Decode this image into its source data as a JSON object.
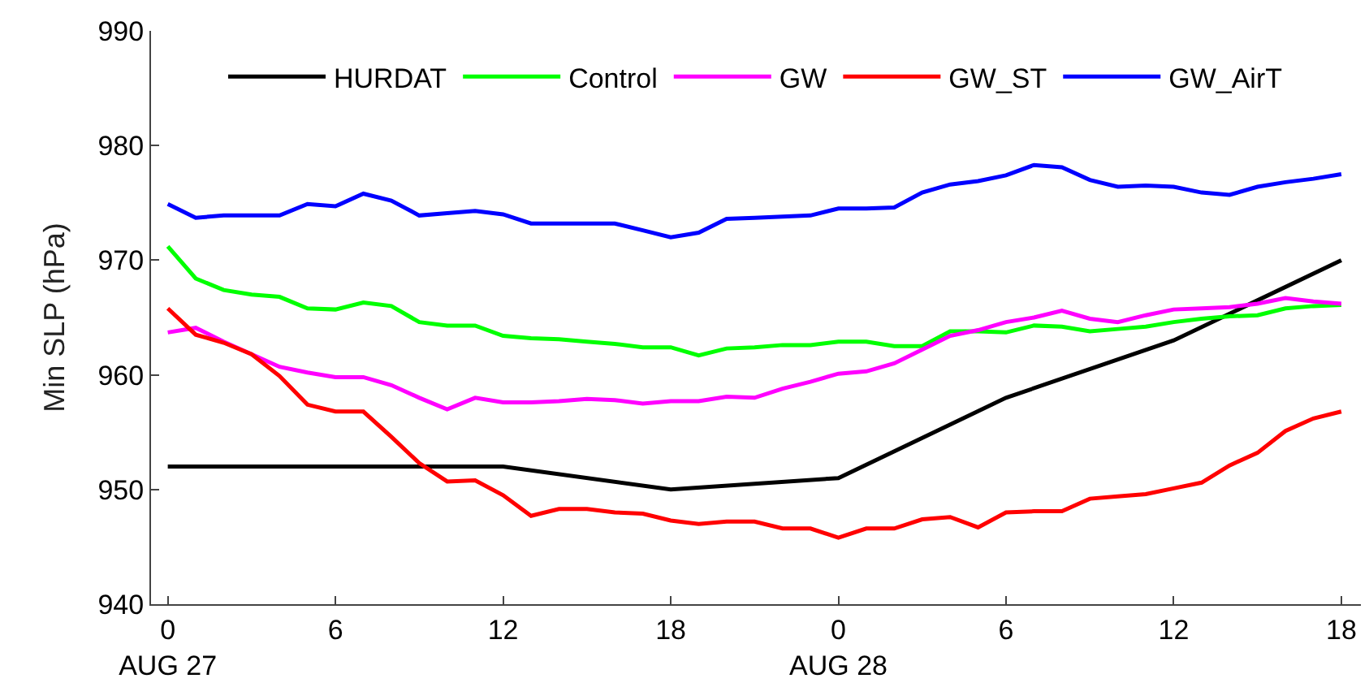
{
  "chart_data": {
    "type": "line",
    "ylabel": "Min SLP (hPa)",
    "x": [
      "--08-27T00:00",
      "--08-27T01:00",
      "--08-27T02:00",
      "--08-27T03:00",
      "--08-27T04:00",
      "--08-27T05:00",
      "--08-27T06:00",
      "--08-27T07:00",
      "--08-27T08:00",
      "--08-27T09:00",
      "--08-27T10:00",
      "--08-27T11:00",
      "--08-27T12:00",
      "--08-27T13:00",
      "--08-27T14:00",
      "--08-27T15:00",
      "--08-27T16:00",
      "--08-27T17:00",
      "--08-27T18:00",
      "--08-27T19:00",
      "--08-27T20:00",
      "--08-27T21:00",
      "--08-27T22:00",
      "--08-27T23:00",
      "--08-28T00:00",
      "--08-28T01:00",
      "--08-28T02:00",
      "--08-28T03:00",
      "--08-28T04:00",
      "--08-28T05:00",
      "--08-28T06:00",
      "--08-28T07:00",
      "--08-28T08:00",
      "--08-28T09:00",
      "--08-28T10:00",
      "--08-28T11:00",
      "--08-28T12:00",
      "--08-28T13:00",
      "--08-28T14:00",
      "--08-28T15:00",
      "--08-28T16:00",
      "--08-28T17:00",
      "--08-28T18:00"
    ],
    "series": [
      {
        "name": "HURDAT",
        "color": "#000000",
        "x": [
          "--08-27T00:00",
          "--08-27T06:00",
          "--08-27T12:00",
          "--08-27T18:00",
          "--08-28T00:00",
          "--08-28T06:00",
          "--08-28T12:00",
          "--08-28T18:00"
        ],
        "values": [
          952,
          952,
          952,
          950,
          951,
          958,
          963,
          970
        ]
      },
      {
        "name": "Control",
        "color": "#00ff00",
        "values": [
          971.2,
          968.4,
          967.4,
          967.0,
          966.8,
          965.8,
          965.7,
          966.3,
          966.0,
          964.6,
          964.3,
          964.3,
          963.4,
          963.2,
          963.1,
          962.9,
          962.7,
          962.4,
          962.4,
          961.7,
          962.3,
          962.4,
          962.6,
          962.6,
          962.9,
          962.9,
          962.5,
          962.5,
          963.8,
          963.8,
          963.7,
          964.3,
          964.2,
          963.8,
          964.0,
          964.2,
          964.6,
          964.9,
          965.1,
          965.2,
          965.8,
          966.0,
          966.1
        ]
      },
      {
        "name": "GW",
        "color": "#ff00ff",
        "values": [
          963.7,
          964.1,
          962.9,
          961.8,
          960.7,
          960.2,
          959.8,
          959.8,
          959.1,
          958.0,
          957.0,
          958.0,
          957.6,
          957.6,
          957.7,
          957.9,
          957.8,
          957.5,
          957.7,
          957.7,
          958.1,
          958.0,
          958.8,
          959.4,
          960.1,
          960.3,
          961.0,
          962.2,
          963.4,
          963.9,
          964.6,
          965.0,
          965.6,
          964.9,
          964.6,
          965.2,
          965.7,
          965.8,
          965.9,
          966.2,
          966.7,
          966.4,
          966.2
        ]
      },
      {
        "name": "GW_ST",
        "color": "#ff0000",
        "values": [
          965.8,
          963.5,
          962.8,
          961.8,
          959.9,
          957.4,
          956.8,
          956.8,
          954.6,
          952.3,
          950.7,
          950.8,
          949.5,
          947.7,
          948.3,
          948.3,
          948.0,
          947.9,
          947.3,
          947.0,
          947.2,
          947.2,
          946.6,
          946.6,
          945.8,
          946.6,
          946.6,
          947.4,
          947.6,
          946.7,
          948.0,
          948.1,
          948.1,
          949.2,
          949.4,
          949.6,
          950.1,
          950.6,
          952.1,
          953.2,
          955.1,
          956.2,
          956.8
        ]
      },
      {
        "name": "GW_AirT",
        "color": "#0000ff",
        "values": [
          974.9,
          973.7,
          973.9,
          973.9,
          973.9,
          974.9,
          974.7,
          975.8,
          975.2,
          973.9,
          974.1,
          974.3,
          974.0,
          973.2,
          973.2,
          973.2,
          973.2,
          972.6,
          972.0,
          972.4,
          973.6,
          973.7,
          973.8,
          973.9,
          974.5,
          974.5,
          974.6,
          975.9,
          976.6,
          976.9,
          977.4,
          978.3,
          978.1,
          977.0,
          976.4,
          976.5,
          976.4,
          975.9,
          975.7,
          976.4,
          976.8,
          977.1,
          977.5
        ]
      }
    ],
    "xlim": [
      "--08-26T23:24",
      "--08-28T18:42"
    ],
    "xticks": [
      {
        "value": "--08-27T00:00",
        "label": "0\nAUG 27"
      },
      {
        "value": "--08-27T06:00",
        "label": "6"
      },
      {
        "value": "--08-27T12:00",
        "label": "12"
      },
      {
        "value": "--08-27T18:00",
        "label": "18"
      },
      {
        "value": "--08-28T00:00",
        "label": "0\nAUG 28"
      },
      {
        "value": "--08-28T06:00",
        "label": "6"
      },
      {
        "value": "--08-28T12:00",
        "label": "12"
      },
      {
        "value": "--08-28T18:00",
        "label": "18"
      }
    ],
    "ylim": [
      940,
      990
    ],
    "yticks": [
      940,
      950,
      960,
      970,
      980,
      990
    ],
    "grid": false,
    "legend": "top",
    "marker": "none",
    "line_style": "solid"
  }
}
